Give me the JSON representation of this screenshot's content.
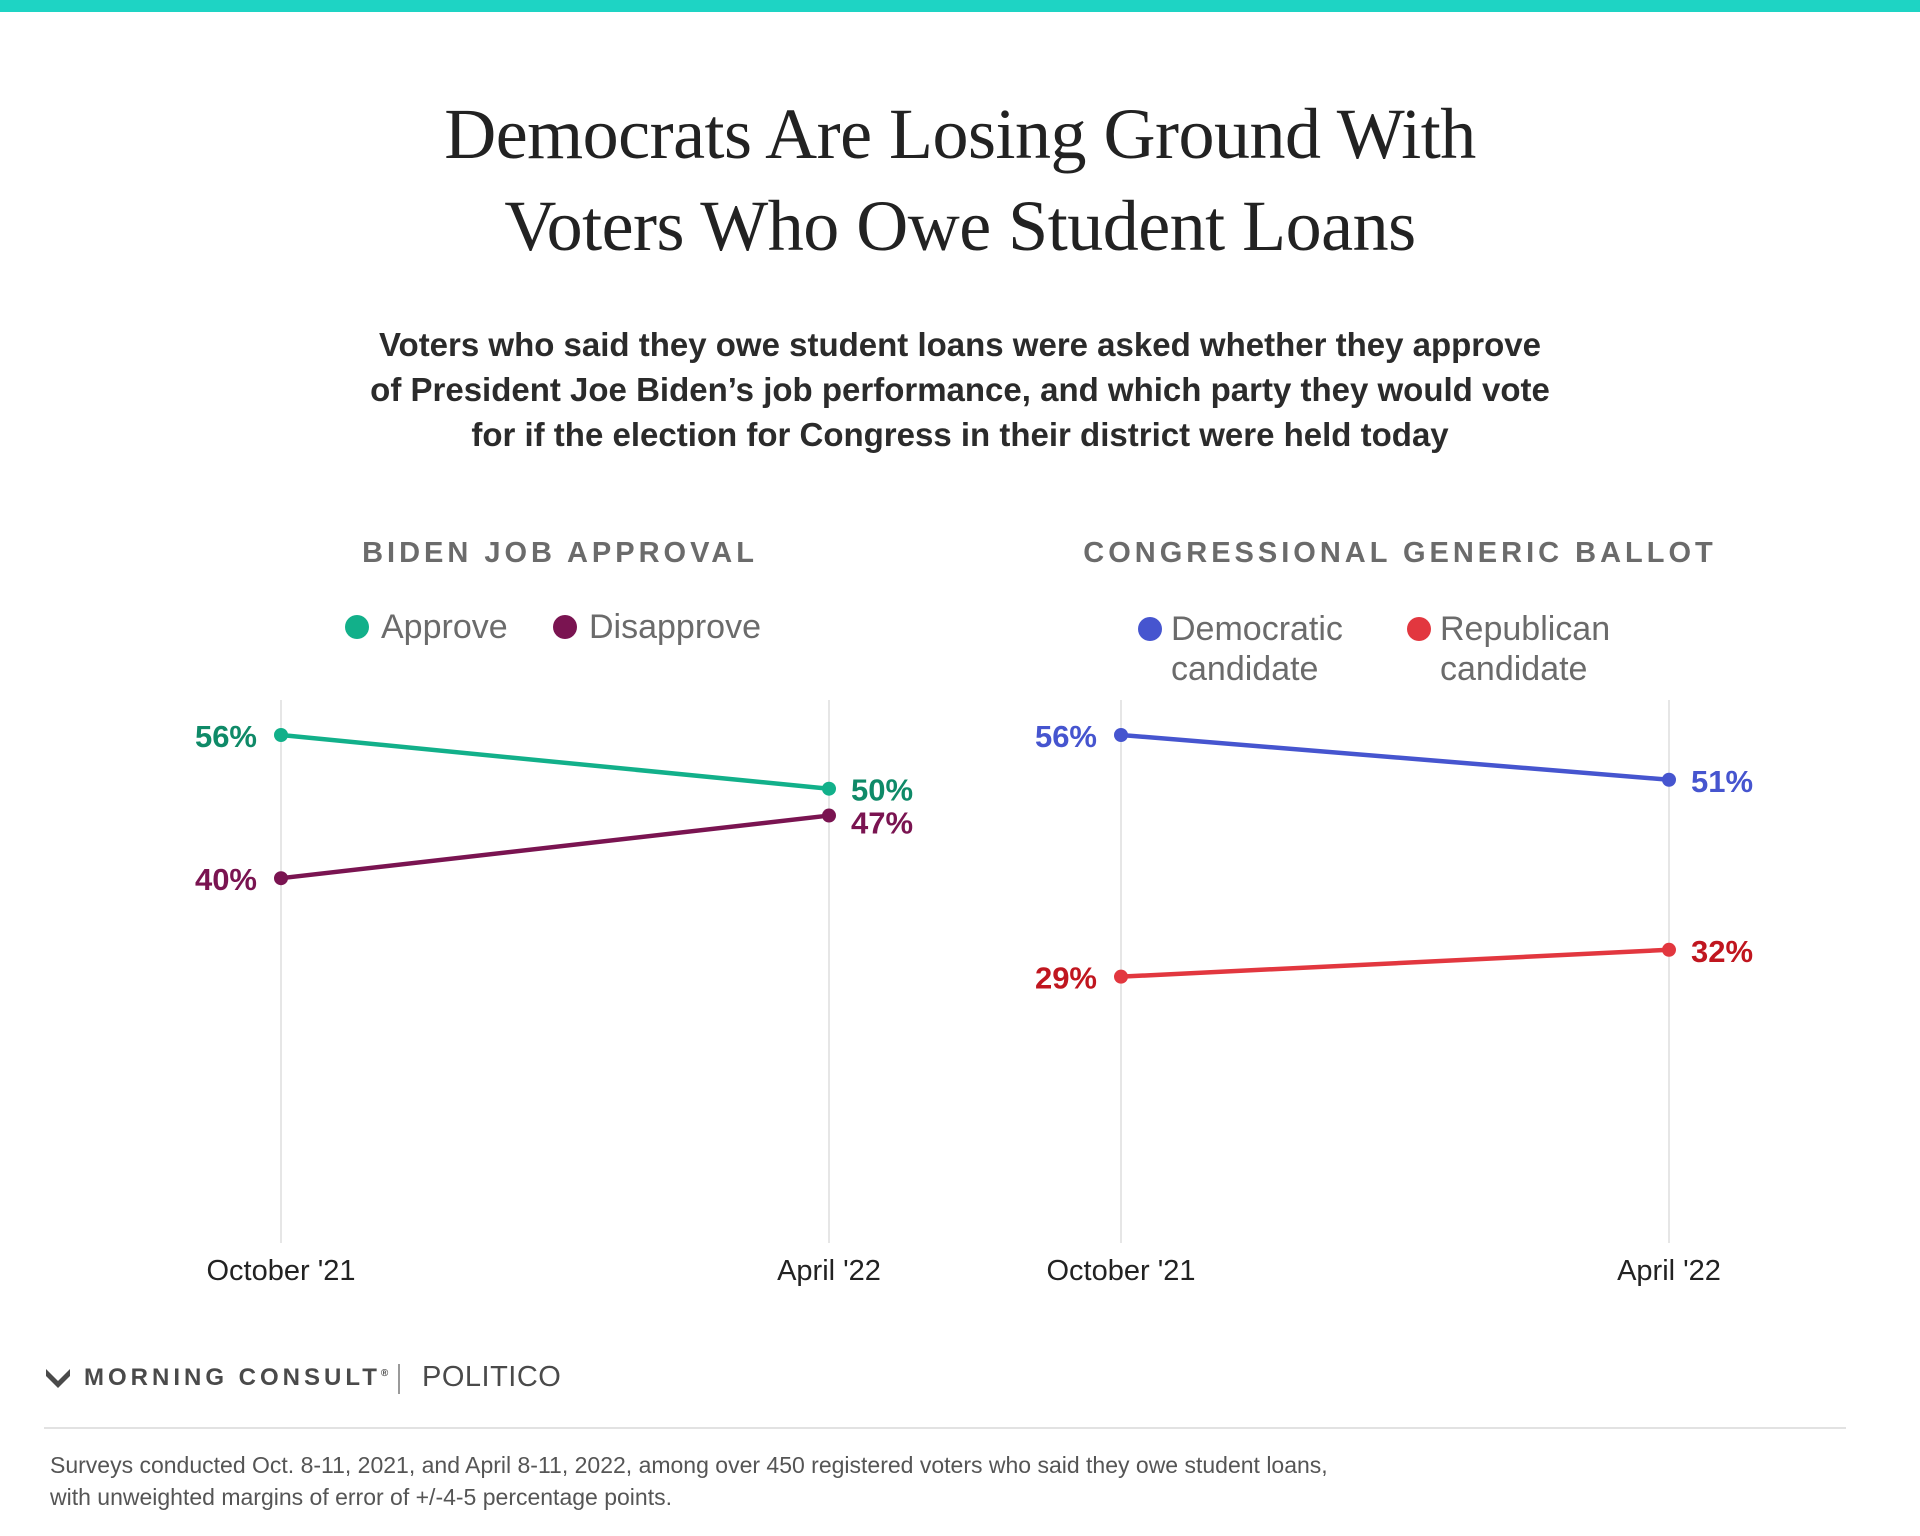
{
  "colors": {
    "top_bar": "#1ed4c4",
    "approve": "#12b08a",
    "approve_label": "#0f8a68",
    "disapprove": "#7a1451",
    "democratic": "#4655cf",
    "republican": "#e2373f",
    "republican_label": "#c0161f",
    "gridline": "#dddddd"
  },
  "title_line1": "Democrats Are Losing Ground With",
  "title_line2": "Voters Who Owe Student Loans",
  "subtitle_line1": "Voters who said they owe student loans were asked whether they approve",
  "subtitle_line2": "of President Joe Biden’s job performance, and which party they would vote",
  "subtitle_line3": "for if the election for Congress in their district were held today",
  "chart_data": [
    {
      "type": "line",
      "title": "BIDEN JOB APPROVAL",
      "legend_placement": "top",
      "grid": "vertical",
      "categories": [
        "October '21",
        "April '22"
      ],
      "ylim": [
        0,
        100
      ],
      "series": [
        {
          "name": "Approve",
          "values": [
            56,
            50
          ],
          "labels": [
            "56%",
            "50%"
          ],
          "color": "#12b08a"
        },
        {
          "name": "Disapprove",
          "values": [
            40,
            47
          ],
          "labels": [
            "40%",
            "47%"
          ],
          "color": "#7a1451"
        }
      ]
    },
    {
      "type": "line",
      "title": "CONGRESSIONAL GENERIC BALLOT",
      "legend_placement": "top",
      "grid": "vertical",
      "categories": [
        "October '21",
        "April '22"
      ],
      "ylim": [
        0,
        100
      ],
      "series": [
        {
          "name": "Democratic candidate",
          "name_line1": "Democratic",
          "name_line2": "candidate",
          "values": [
            56,
            51
          ],
          "labels": [
            "56%",
            "51%"
          ],
          "color": "#4655cf"
        },
        {
          "name": "Republican candidate",
          "name_line1": "Republican",
          "name_line2": "candidate",
          "values": [
            29,
            32
          ],
          "labels": [
            "29%",
            "32%"
          ],
          "color": "#e2373f"
        }
      ]
    }
  ],
  "branding": {
    "morning_consult": "MORNING CONSULT",
    "registered_mark": "®",
    "politico": "POLITICO"
  },
  "footnote_line1": "Surveys conducted Oct. 8-11, 2021, and April 8-11, 2022, among over 450 registered voters who said they owe student loans,",
  "footnote_line2": "with unweighted margins of error of +/-4-5 percentage points."
}
